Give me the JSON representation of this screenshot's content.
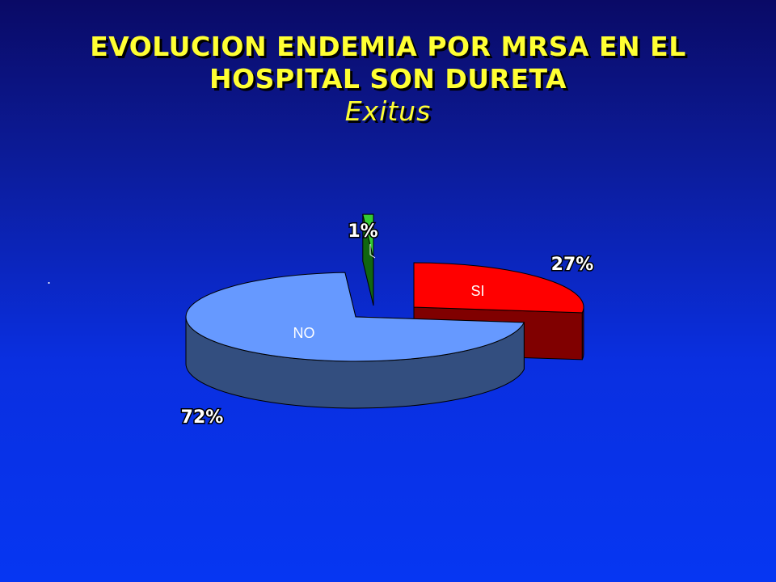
{
  "slide": {
    "title_line1": "EVOLUCION ENDEMIA POR MRSA EN EL",
    "title_line2": "HOSPITAL SON DURETA",
    "subtitle": "Exitus",
    "bullet": "."
  },
  "chart_data": {
    "type": "pie",
    "style": "3d-exploded",
    "title": "",
    "slices": [
      {
        "name": "SI",
        "value": 27,
        "pct_label": "27%",
        "color": "#ff0000",
        "side_color": "#800000"
      },
      {
        "name": "NO",
        "value": 72,
        "pct_label": "72%",
        "color": "#6699ff",
        "side_color": "#334e7f"
      },
      {
        "name": "",
        "value": 1,
        "pct_label": "1%",
        "color": "#33cc33",
        "side_color": "#116611"
      }
    ],
    "category_labels_shown": [
      "SI",
      "NO"
    ],
    "label_color": "#ffffff",
    "legend": "none"
  }
}
